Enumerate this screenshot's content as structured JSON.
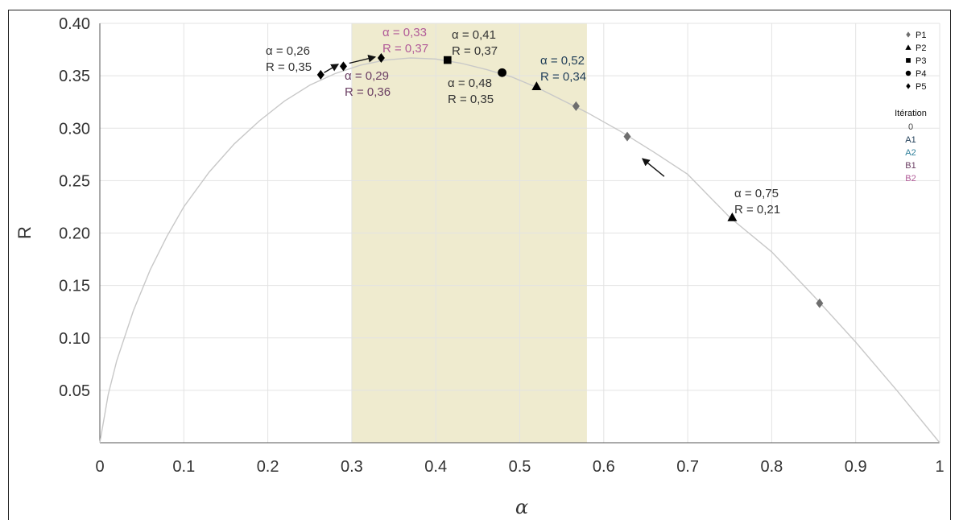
{
  "chart_data": {
    "type": "line",
    "xlabel": "α",
    "ylabel": "R",
    "xlim": [
      0,
      1
    ],
    "ylim": [
      0,
      0.4
    ],
    "x_ticks": [
      "0",
      "0.1",
      "0.2",
      "0.3",
      "0.4",
      "0.5",
      "0.6",
      "0.7",
      "0.8",
      "0.9",
      "1"
    ],
    "y_ticks": [
      "0.05",
      "0.10",
      "0.15",
      "0.20",
      "0.25",
      "0.30",
      "0.35",
      "0.40"
    ],
    "grid": true,
    "highlight_band": {
      "x_from": 0.3,
      "x_to": 0.58,
      "color": "#efebcf"
    },
    "curve_color": "#c8c8c8",
    "curve": {
      "x": [
        0,
        0.01,
        0.02,
        0.04,
        0.06,
        0.08,
        0.1,
        0.13,
        0.16,
        0.19,
        0.22,
        0.25,
        0.28,
        0.31,
        0.34,
        0.37,
        0.4,
        0.43,
        0.46,
        0.49,
        0.52,
        0.55,
        0.58,
        0.62,
        0.66,
        0.7,
        0.75,
        0.8,
        0.85,
        0.9,
        0.95,
        1.0
      ],
      "y": [
        0,
        0.046,
        0.078,
        0.126,
        0.165,
        0.197,
        0.225,
        0.258,
        0.285,
        0.307,
        0.326,
        0.341,
        0.352,
        0.36,
        0.365,
        0.367,
        0.366,
        0.362,
        0.356,
        0.349,
        0.339,
        0.327,
        0.315,
        0.297,
        0.277,
        0.256,
        0.215,
        0.182,
        0.14,
        0.096,
        0.049,
        0
      ]
    },
    "series": [
      {
        "name": "P1",
        "marker": "diamond",
        "color": "#6e6e6e",
        "points": [
          {
            "x": 0.567,
            "y": 0.321
          },
          {
            "x": 0.628,
            "y": 0.292
          },
          {
            "x": 0.857,
            "y": 0.133
          }
        ]
      },
      {
        "name": "P2",
        "marker": "triangle",
        "color": "#000000",
        "points": [
          {
            "x": 0.52,
            "y": 0.34
          },
          {
            "x": 0.753,
            "y": 0.215
          }
        ]
      },
      {
        "name": "P3",
        "marker": "square",
        "color": "#000000",
        "points": [
          {
            "x": 0.414,
            "y": 0.365
          }
        ]
      },
      {
        "name": "P4",
        "marker": "circle",
        "color": "#000000",
        "points": [
          {
            "x": 0.479,
            "y": 0.353
          }
        ]
      },
      {
        "name": "P5",
        "marker": "diamond",
        "color": "#000000",
        "points": [
          {
            "x": 0.263,
            "y": 0.351
          },
          {
            "x": 0.29,
            "y": 0.359
          },
          {
            "x": 0.335,
            "y": 0.367
          }
        ]
      }
    ],
    "annotations": [
      {
        "line1": "α = 0,26",
        "line2": "R = 0,35",
        "color": "#333333",
        "iteration": "0"
      },
      {
        "line1": "α = 0,29",
        "line2": "R = 0,36",
        "color": "#6b3f63",
        "iteration": "B1"
      },
      {
        "line1": "α = 0,33",
        "line2": "R = 0,37",
        "color": "#b15b98",
        "iteration": "B2"
      },
      {
        "line1": "α = 0,41",
        "line2": "R = 0,37",
        "color": "#333333",
        "iteration": "0"
      },
      {
        "line1": "α = 0,48",
        "line2": "R = 0,35",
        "color": "#333333",
        "iteration": "0"
      },
      {
        "line1": "α = 0,52",
        "line2": "R = 0,34",
        "color": "#1f3d57",
        "iteration": "A1"
      },
      {
        "line1": "α = 0,75",
        "line2": "R = 0,21",
        "color": "#333333",
        "iteration": "0"
      }
    ],
    "arrows": [
      {
        "from": {
          "x": 0.267,
          "y": 0.353
        },
        "to": {
          "x": 0.284,
          "y": 0.361
        }
      },
      {
        "from": {
          "x": 0.297,
          "y": 0.362
        },
        "to": {
          "x": 0.328,
          "y": 0.368
        }
      },
      {
        "from": {
          "x": 0.672,
          "y": 0.254
        },
        "to": {
          "x": 0.646,
          "y": 0.271
        }
      }
    ],
    "legend": {
      "placement": "top-right",
      "markers": [
        {
          "label": "P1",
          "marker": "diamond",
          "color": "#6e6e6e"
        },
        {
          "label": "P2",
          "marker": "triangle",
          "color": "#000000"
        },
        {
          "label": "P3",
          "marker": "square",
          "color": "#000000"
        },
        {
          "label": "P4",
          "marker": "circle",
          "color": "#000000"
        },
        {
          "label": "P5",
          "marker": "diamond",
          "color": "#000000"
        }
      ],
      "iteration_title": "Itération",
      "iterations": [
        {
          "label": "0",
          "color": "#444444"
        },
        {
          "label": "A1",
          "color": "#1f3d57"
        },
        {
          "label": "A2",
          "color": "#2f7f9a"
        },
        {
          "label": "B1",
          "color": "#6b3f63"
        },
        {
          "label": "B2",
          "color": "#b15b98"
        }
      ]
    }
  }
}
